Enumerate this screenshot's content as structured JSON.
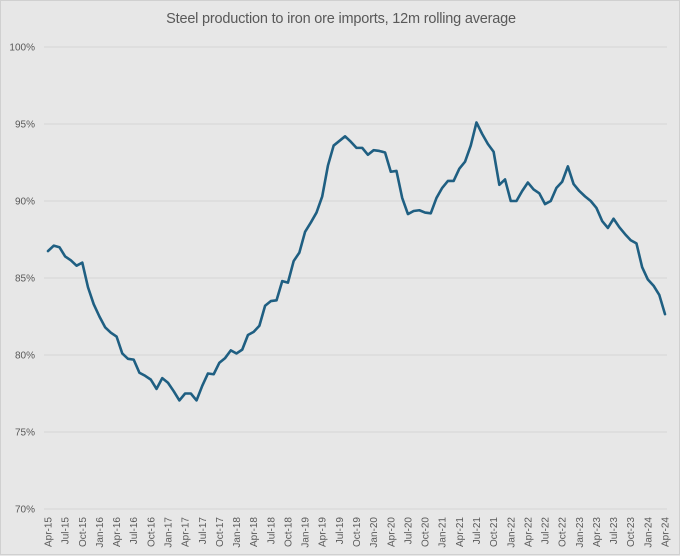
{
  "chart_data": {
    "type": "line",
    "title": "Steel  production to iron ore imports, 12m rolling average",
    "xlabel": "",
    "ylabel": "",
    "ylim": [
      70,
      100
    ],
    "y_ticks": [
      "70%",
      "75%",
      "80%",
      "85%",
      "90%",
      "95%",
      "100%"
    ],
    "y_tick_values": [
      70,
      75,
      80,
      85,
      90,
      95,
      100
    ],
    "grid": true,
    "legend": "none",
    "x_start": "Apr-15",
    "x_frequency": "monthly",
    "x_tick_labels": [
      "Apr-15",
      "Jul-15",
      "Oct-15",
      "Jan-16",
      "Apr-16",
      "Jul-16",
      "Oct-16",
      "Jan-17",
      "Apr-17",
      "Jul-17",
      "Oct-17",
      "Jan-18",
      "Apr-18",
      "Jul-18",
      "Oct-18",
      "Jan-19",
      "Apr-19",
      "Jul-19",
      "Oct-19",
      "Jan-20",
      "Apr-20",
      "Jul-20",
      "Oct-20",
      "Jan-21",
      "Apr-21",
      "Jul-21",
      "Oct-21",
      "Jan-22",
      "Apr-22",
      "Jul-22",
      "Oct-22",
      "Jan-23",
      "Apr-23",
      "Jul-23",
      "Oct-23",
      "Jan-24",
      "Apr-24"
    ],
    "series": [
      {
        "name": "Steel production to iron ore imports, 12m rolling average",
        "color": "#1f5f82",
        "values": [
          86.75,
          87.1,
          87.0,
          86.4,
          86.15,
          85.8,
          86.0,
          84.4,
          83.3,
          82.5,
          81.8,
          81.45,
          81.2,
          80.1,
          79.75,
          79.7,
          78.85,
          78.65,
          78.4,
          77.8,
          78.5,
          78.2,
          77.65,
          77.05,
          77.5,
          77.5,
          77.05,
          78.0,
          78.8,
          78.75,
          79.5,
          79.8,
          80.3,
          80.1,
          80.35,
          81.3,
          81.5,
          81.9,
          83.2,
          83.5,
          83.55,
          84.8,
          84.7,
          86.1,
          86.65,
          88.0,
          88.6,
          89.25,
          90.3,
          92.3,
          93.6,
          93.9,
          94.2,
          93.85,
          93.45,
          93.45,
          93.0,
          93.3,
          93.25,
          93.15,
          91.9,
          91.95,
          90.2,
          89.15,
          89.35,
          89.4,
          89.25,
          89.2,
          90.2,
          90.85,
          91.3,
          91.3,
          92.1,
          92.55,
          93.6,
          95.1,
          94.35,
          93.7,
          93.2,
          91.05,
          91.4,
          90.0,
          90.0,
          90.65,
          91.2,
          90.75,
          90.5,
          89.8,
          90.0,
          90.85,
          91.25,
          92.25,
          91.1,
          90.65,
          90.3,
          90.0,
          89.55,
          88.7,
          88.25,
          88.85,
          88.3,
          87.85,
          87.45,
          87.25,
          85.7,
          84.9,
          84.5,
          83.9,
          82.65
        ]
      }
    ]
  }
}
